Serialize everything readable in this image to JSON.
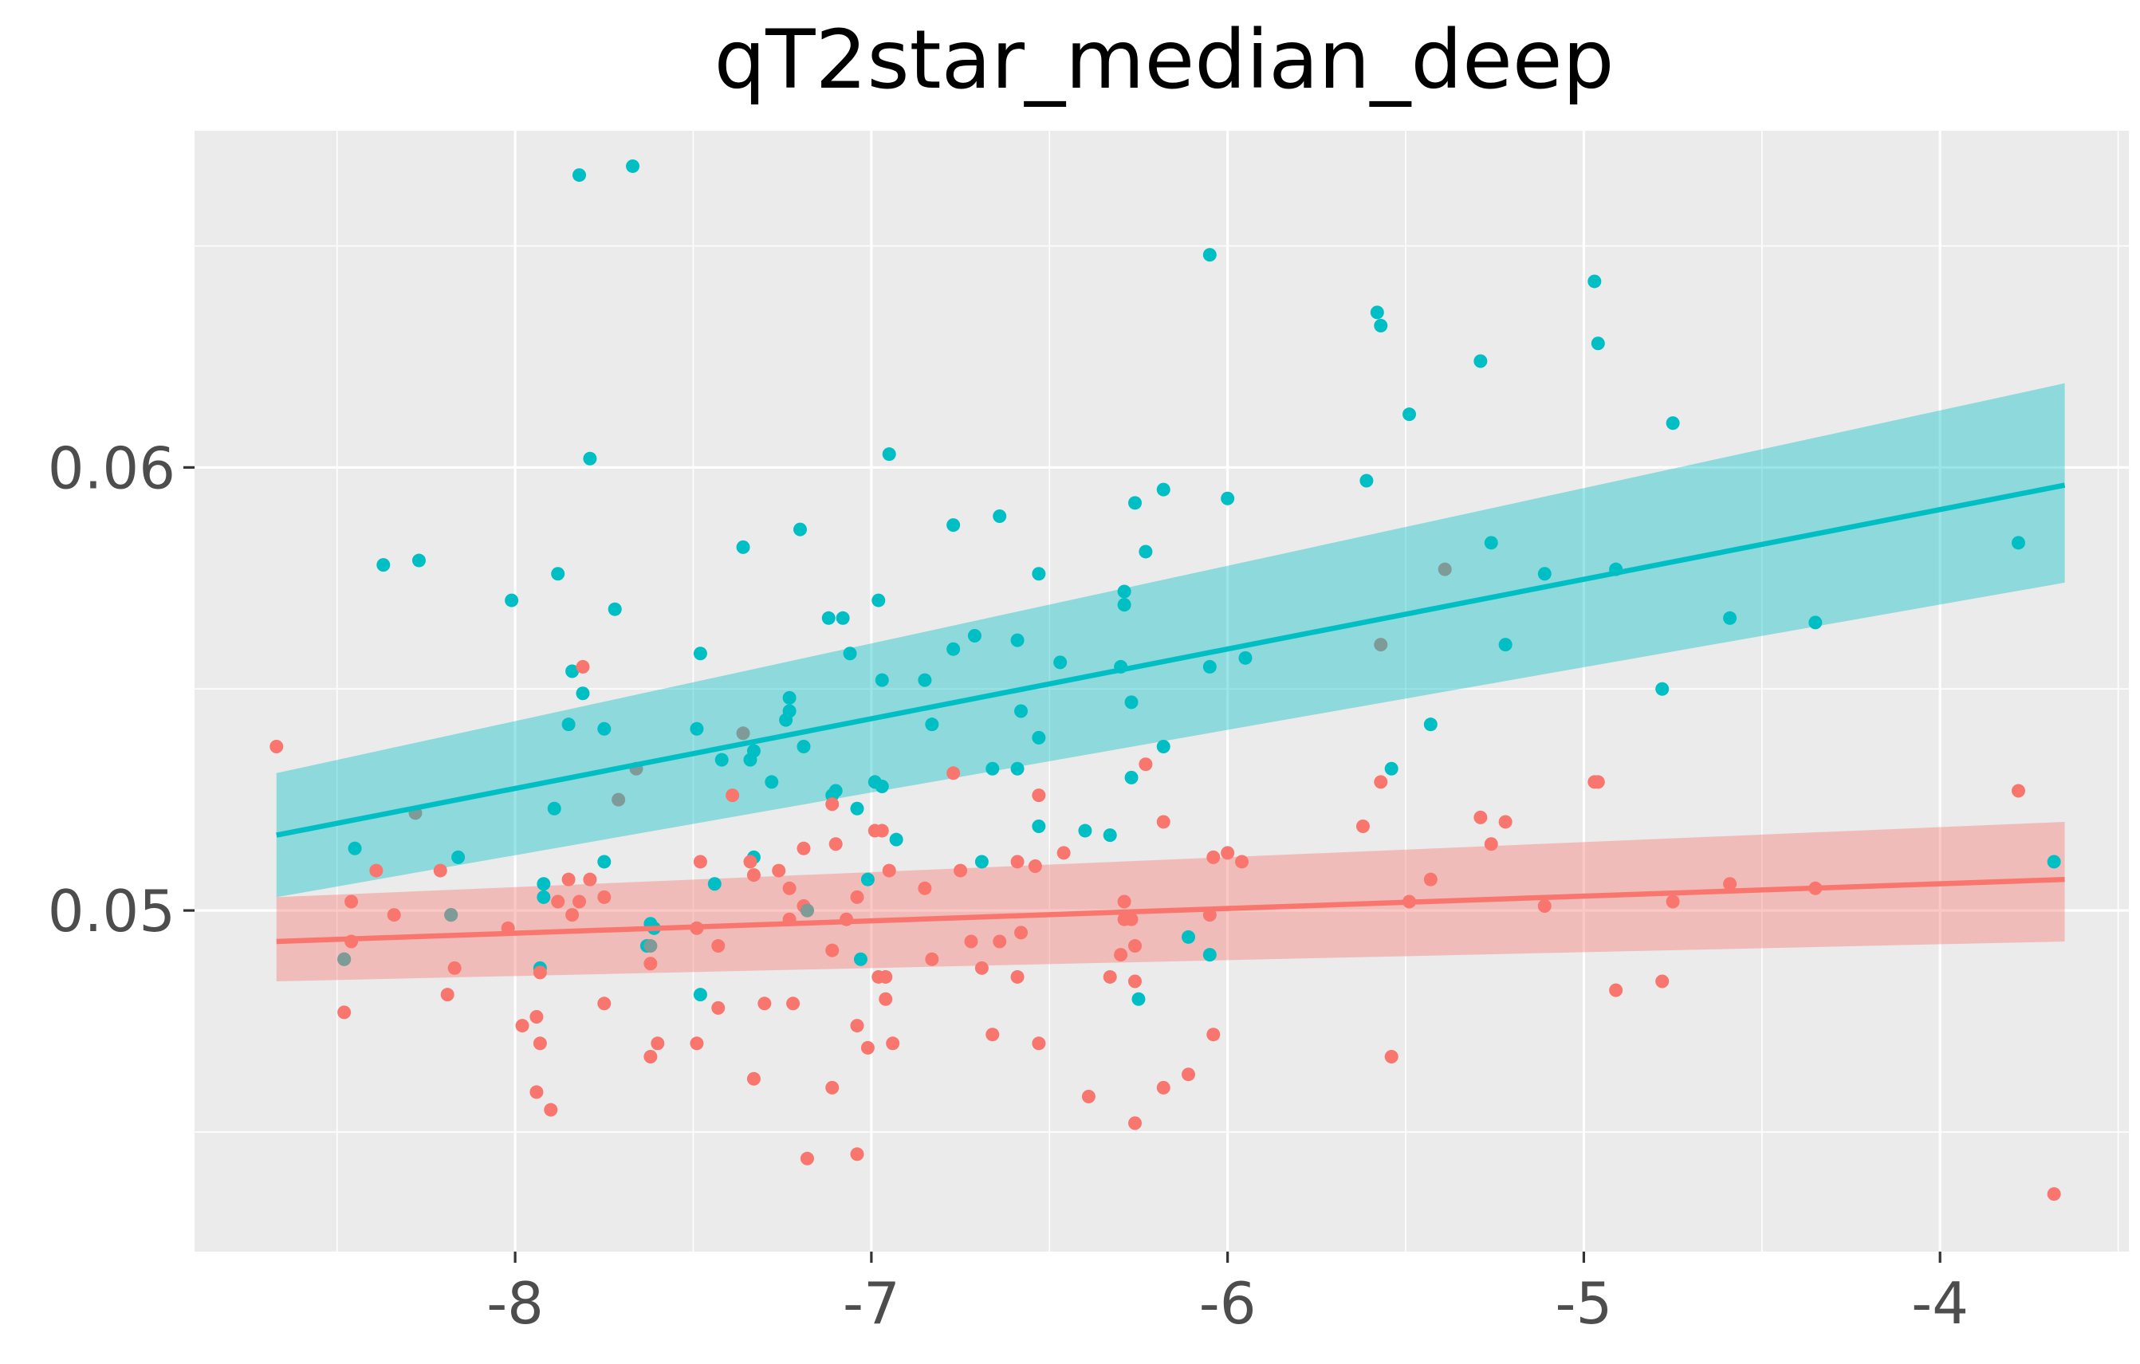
{
  "chart_data": {
    "type": "scatter",
    "title": "qT2star_median_deep",
    "xlabel": "",
    "ylabel": "",
    "xlim": [
      -8.9,
      -3.47
    ],
    "ylim": [
      0.0423,
      0.0676
    ],
    "x_ticks": [
      -8,
      -7,
      -6,
      -5,
      -4
    ],
    "x_tick_labels": [
      "-8",
      "-7",
      "-6",
      "-5",
      "-4"
    ],
    "y_ticks": [
      0.05,
      0.06
    ],
    "y_tick_labels": [
      "0.05",
      "0.06"
    ],
    "grid": true,
    "legend": "none",
    "background_color": "#EBEBEB",
    "grid_color": "#FFFFFF",
    "series": [
      {
        "color": "#00BFC4",
        "band_color": "#00BFC4",
        "fit": {
          "x": [
            -8.67,
            -3.65
          ],
          "y": [
            0.0517,
            0.0596
          ],
          "lower": [
            0.0503,
            0.0574
          ],
          "upper": [
            0.0531,
            0.0619
          ]
        },
        "points": [
          [
            -7.82,
            0.0666
          ],
          [
            -7.67,
            0.0668
          ],
          [
            -6.05,
            0.0648
          ],
          [
            -5.58,
            0.0635
          ],
          [
            -5.57,
            0.0632
          ],
          [
            -4.97,
            0.0642
          ],
          [
            -4.96,
            0.0628
          ],
          [
            -5.29,
            0.0624
          ],
          [
            -5.49,
            0.0612
          ],
          [
            -4.75,
            0.061
          ],
          [
            -7.79,
            0.0602
          ],
          [
            -6.95,
            0.0603
          ],
          [
            -5.61,
            0.0597
          ],
          [
            -6.18,
            0.0595
          ],
          [
            -6.26,
            0.0592
          ],
          [
            -6.0,
            0.0593
          ],
          [
            -6.64,
            0.0589
          ],
          [
            -6.77,
            0.0587
          ],
          [
            -7.2,
            0.0586
          ],
          [
            -3.78,
            0.0583
          ],
          [
            -7.36,
            0.0582
          ],
          [
            -5.26,
            0.0583
          ],
          [
            -6.23,
            0.0581
          ],
          [
            -8.37,
            0.0578
          ],
          [
            -8.27,
            0.0579
          ],
          [
            -7.88,
            0.0576
          ],
          [
            -6.53,
            0.0576
          ],
          [
            -5.11,
            0.0576
          ],
          [
            -4.91,
            0.0577
          ],
          [
            -6.29,
            0.0572
          ],
          [
            -8.01,
            0.057
          ],
          [
            -6.98,
            0.057
          ],
          [
            -6.29,
            0.0569
          ],
          [
            -7.72,
            0.0568
          ],
          [
            -7.12,
            0.0566
          ],
          [
            -7.08,
            0.0566
          ],
          [
            -4.59,
            0.0566
          ],
          [
            -4.35,
            0.0565
          ],
          [
            -6.71,
            0.0562
          ],
          [
            -6.59,
            0.0561
          ],
          [
            -6.77,
            0.0559
          ],
          [
            -5.22,
            0.056
          ],
          [
            -7.06,
            0.0558
          ],
          [
            -7.48,
            0.0558
          ],
          [
            -6.47,
            0.0556
          ],
          [
            -5.95,
            0.0557
          ],
          [
            -6.05,
            0.0555
          ],
          [
            -6.3,
            0.0555
          ],
          [
            -7.84,
            0.0554
          ],
          [
            -6.97,
            0.0552
          ],
          [
            -6.85,
            0.0552
          ],
          [
            -4.78,
            0.055
          ],
          [
            -7.81,
            0.0549
          ],
          [
            -7.23,
            0.0548
          ],
          [
            -6.27,
            0.0547
          ],
          [
            -7.23,
            0.0545
          ],
          [
            -6.58,
            0.0545
          ],
          [
            -7.24,
            0.0543
          ],
          [
            -6.83,
            0.0542
          ],
          [
            -7.85,
            0.0542
          ],
          [
            -7.75,
            0.0541
          ],
          [
            -7.49,
            0.0541
          ],
          [
            -5.43,
            0.0542
          ],
          [
            -6.53,
            0.0539
          ],
          [
            -7.19,
            0.0537
          ],
          [
            -6.18,
            0.0537
          ],
          [
            -7.33,
            0.0536
          ],
          [
            -7.34,
            0.0534
          ],
          [
            -7.42,
            0.0534
          ],
          [
            -6.66,
            0.0532
          ],
          [
            -6.59,
            0.0532
          ],
          [
            -5.54,
            0.0532
          ],
          [
            -7.28,
            0.0529
          ],
          [
            -6.27,
            0.053
          ],
          [
            -6.99,
            0.0529
          ],
          [
            -6.97,
            0.0528
          ],
          [
            -7.1,
            0.0527
          ],
          [
            -7.11,
            0.0526
          ],
          [
            -7.04,
            0.0523
          ],
          [
            -7.89,
            0.0523
          ],
          [
            -6.53,
            0.0519
          ],
          [
            -6.4,
            0.0518
          ],
          [
            -6.33,
            0.0517
          ],
          [
            -6.93,
            0.0516
          ],
          [
            -8.45,
            0.0514
          ],
          [
            -8.16,
            0.0512
          ],
          [
            -7.75,
            0.0511
          ],
          [
            -6.69,
            0.0511
          ],
          [
            -3.68,
            0.0511
          ],
          [
            -7.33,
            0.0512
          ],
          [
            -7.44,
            0.0506
          ],
          [
            -7.01,
            0.0507
          ],
          [
            -7.92,
            0.0506
          ],
          [
            -7.92,
            0.0503
          ],
          [
            -8.18,
            0.0499
          ],
          [
            -7.62,
            0.0497
          ],
          [
            -7.61,
            0.0496
          ],
          [
            -6.11,
            0.0494
          ],
          [
            -7.63,
            0.0492
          ],
          [
            -8.48,
            0.0489
          ],
          [
            -7.03,
            0.0489
          ],
          [
            -6.05,
            0.049
          ],
          [
            -7.93,
            0.0487
          ],
          [
            -7.48,
            0.0481
          ],
          [
            -6.25,
            0.048
          ]
        ]
      },
      {
        "color": "#F8766D",
        "band_color": "#F8766D",
        "fit": {
          "x": [
            -8.67,
            -3.65
          ],
          "y": [
            0.0493,
            0.0507
          ],
          "lower": [
            0.0484,
            0.0493
          ],
          "upper": [
            0.0503,
            0.052
          ]
        },
        "points": [
          [
            -7.81,
            0.0555
          ],
          [
            -8.67,
            0.0537
          ],
          [
            -6.23,
            0.0533
          ],
          [
            -7.39,
            0.0526
          ],
          [
            -6.77,
            0.0531
          ],
          [
            -5.57,
            0.0529
          ],
          [
            -4.97,
            0.0529
          ],
          [
            -4.96,
            0.0529
          ],
          [
            -3.78,
            0.0527
          ],
          [
            -6.53,
            0.0526
          ],
          [
            -7.11,
            0.0524
          ],
          [
            -5.29,
            0.0521
          ],
          [
            -6.18,
            0.052
          ],
          [
            -5.22,
            0.052
          ],
          [
            -5.62,
            0.0519
          ],
          [
            -6.97,
            0.0518
          ],
          [
            -6.99,
            0.0518
          ],
          [
            -7.1,
            0.0515
          ],
          [
            -5.26,
            0.0515
          ],
          [
            -7.19,
            0.0514
          ],
          [
            -6.46,
            0.0513
          ],
          [
            -6.0,
            0.0513
          ],
          [
            -6.04,
            0.0512
          ],
          [
            -5.96,
            0.0511
          ],
          [
            -7.48,
            0.0511
          ],
          [
            -7.34,
            0.0511
          ],
          [
            -6.59,
            0.0511
          ],
          [
            -6.54,
            0.051
          ],
          [
            -7.26,
            0.0509
          ],
          [
            -6.95,
            0.0509
          ],
          [
            -6.75,
            0.0509
          ],
          [
            -8.39,
            0.0509
          ],
          [
            -8.21,
            0.0509
          ],
          [
            -7.33,
            0.0508
          ],
          [
            -7.85,
            0.0507
          ],
          [
            -7.79,
            0.0507
          ],
          [
            -5.43,
            0.0507
          ],
          [
            -4.59,
            0.0506
          ],
          [
            -4.35,
            0.0505
          ],
          [
            -7.23,
            0.0505
          ],
          [
            -6.85,
            0.0505
          ],
          [
            -7.04,
            0.0503
          ],
          [
            -7.75,
            0.0503
          ],
          [
            -8.46,
            0.0502
          ],
          [
            -7.88,
            0.0502
          ],
          [
            -7.82,
            0.0502
          ],
          [
            -5.49,
            0.0502
          ],
          [
            -4.75,
            0.0502
          ],
          [
            -6.29,
            0.0502
          ],
          [
            -7.19,
            0.0501
          ],
          [
            -7.18,
            0.05
          ],
          [
            -5.11,
            0.0501
          ],
          [
            -8.34,
            0.0499
          ],
          [
            -7.84,
            0.0499
          ],
          [
            -6.05,
            0.0499
          ],
          [
            -7.07,
            0.0498
          ],
          [
            -7.23,
            0.0498
          ],
          [
            -6.29,
            0.0498
          ],
          [
            -6.27,
            0.0498
          ],
          [
            -8.02,
            0.0496
          ],
          [
            -7.49,
            0.0496
          ],
          [
            -6.58,
            0.0495
          ],
          [
            -8.46,
            0.0493
          ],
          [
            -7.43,
            0.0492
          ],
          [
            -7.11,
            0.0491
          ],
          [
            -6.72,
            0.0493
          ],
          [
            -6.64,
            0.0493
          ],
          [
            -6.26,
            0.0492
          ],
          [
            -6.3,
            0.049
          ],
          [
            -7.62,
            0.0488
          ],
          [
            -6.83,
            0.0489
          ],
          [
            -6.69,
            0.0487
          ],
          [
            -8.17,
            0.0487
          ],
          [
            -7.93,
            0.0486
          ],
          [
            -6.98,
            0.0485
          ],
          [
            -6.96,
            0.0485
          ],
          [
            -6.59,
            0.0485
          ],
          [
            -6.33,
            0.0485
          ],
          [
            -6.26,
            0.0484
          ],
          [
            -4.78,
            0.0484
          ],
          [
            -8.19,
            0.0481
          ],
          [
            -4.91,
            0.0482
          ],
          [
            -6.96,
            0.048
          ],
          [
            -7.3,
            0.0479
          ],
          [
            -7.22,
            0.0479
          ],
          [
            -7.75,
            0.0479
          ],
          [
            -8.48,
            0.0477
          ],
          [
            -7.43,
            0.0478
          ],
          [
            -7.94,
            0.0476
          ],
          [
            -7.98,
            0.0474
          ],
          [
            -7.04,
            0.0474
          ],
          [
            -6.66,
            0.0472
          ],
          [
            -6.04,
            0.0472
          ],
          [
            -7.93,
            0.047
          ],
          [
            -7.6,
            0.047
          ],
          [
            -7.49,
            0.047
          ],
          [
            -6.94,
            0.047
          ],
          [
            -6.53,
            0.047
          ],
          [
            -7.01,
            0.0469
          ],
          [
            -7.62,
            0.0467
          ],
          [
            -5.54,
            0.0467
          ],
          [
            -6.11,
            0.0463
          ],
          [
            -7.33,
            0.0462
          ],
          [
            -7.11,
            0.046
          ],
          [
            -6.18,
            0.046
          ],
          [
            -7.94,
            0.0459
          ],
          [
            -6.39,
            0.0458
          ],
          [
            -7.9,
            0.0455
          ],
          [
            -6.26,
            0.0452
          ],
          [
            -7.18,
            0.0444
          ],
          [
            -7.04,
            0.0445
          ],
          [
            -3.68,
            0.0436
          ]
        ]
      }
    ],
    "overlap_points": {
      "color": "#7F9B98",
      "points": [
        [
          -8.28,
          0.0522
        ],
        [
          -7.66,
          0.0532
        ],
        [
          -7.71,
          0.0525
        ],
        [
          -7.36,
          0.054
        ],
        [
          -8.18,
          0.0499
        ],
        [
          -7.62,
          0.0492
        ],
        [
          -8.48,
          0.0489
        ],
        [
          -7.18,
          0.05
        ],
        [
          -5.39,
          0.0577
        ],
        [
          -5.57,
          0.056
        ]
      ]
    }
  }
}
